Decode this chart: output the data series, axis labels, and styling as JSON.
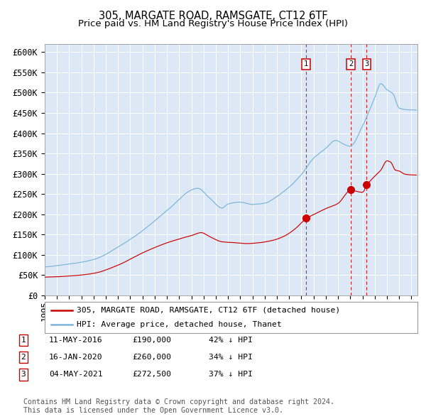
{
  "title1": "305, MARGATE ROAD, RAMSGATE, CT12 6TF",
  "title2": "Price paid vs. HM Land Registry's House Price Index (HPI)",
  "hpi_color": "#7ab4d8",
  "price_color": "#cc0000",
  "bg_color": "#dce8f5",
  "grid_color": "#ffffff",
  "vline_color": "#cc0000",
  "sale_dates": [
    2016.37,
    2020.04,
    2021.34
  ],
  "sale_prices": [
    190000,
    260000,
    272500
  ],
  "sale_labels": [
    "1",
    "2",
    "3"
  ],
  "legend_label_red": "305, MARGATE ROAD, RAMSGATE, CT12 6TF (detached house)",
  "legend_label_blue": "HPI: Average price, detached house, Thanet",
  "table_entries": [
    {
      "num": "1",
      "date": "11-MAY-2016",
      "price": "£190,000",
      "pct": "42% ↓ HPI"
    },
    {
      "num": "2",
      "date": "16-JAN-2020",
      "price": "£260,000",
      "pct": "34% ↓ HPI"
    },
    {
      "num": "3",
      "date": "04-MAY-2021",
      "price": "£272,500",
      "pct": "37% ↓ HPI"
    }
  ],
  "footnote": "Contains HM Land Registry data © Crown copyright and database right 2024.\nThis data is licensed under the Open Government Licence v3.0.",
  "yticks": [
    0,
    50000,
    100000,
    150000,
    200000,
    250000,
    300000,
    350000,
    400000,
    450000,
    500000,
    550000,
    600000
  ],
  "ytick_labels": [
    "£0",
    "£50K",
    "£100K",
    "£150K",
    "£200K",
    "£250K",
    "£300K",
    "£350K",
    "£400K",
    "£450K",
    "£500K",
    "£550K",
    "£600K"
  ],
  "xlim_start": 1995.0,
  "xlim_end": 2025.5,
  "ylim_min": 0,
  "ylim_max": 620000
}
